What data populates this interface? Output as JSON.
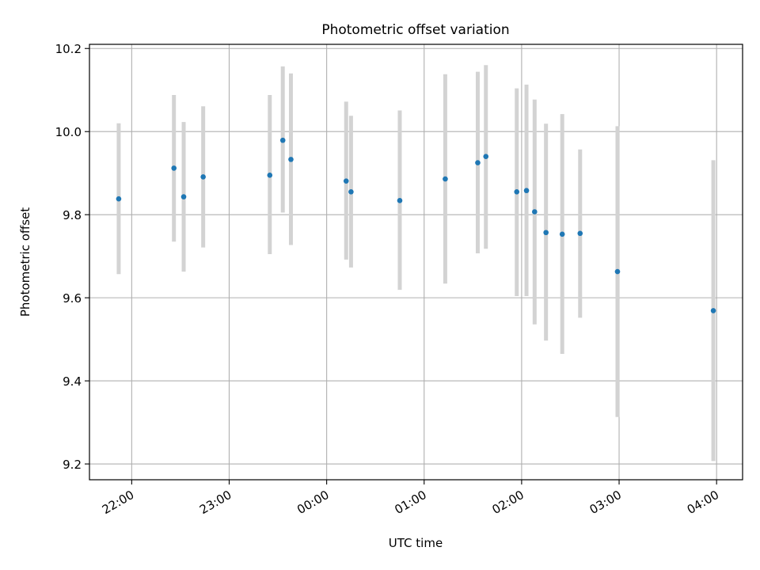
{
  "chart_data": {
    "type": "scatter",
    "title": "Photometric offset variation",
    "xlabel": "UTC time",
    "ylabel": "Photometric offset",
    "x_tick_labels": [
      "22:00",
      "23:00",
      "00:00",
      "01:00",
      "02:00",
      "03:00",
      "04:00"
    ],
    "y_tick_labels": [
      "9.2",
      "9.4",
      "9.6",
      "9.8",
      "10.0",
      "10.2"
    ],
    "y_ticks": [
      9.2,
      9.4,
      9.6,
      9.8,
      10.0,
      10.2
    ],
    "x_ticks": [
      "22:00",
      "23:00",
      "00:00",
      "01:00",
      "02:00",
      "03:00",
      "04:00"
    ],
    "xlim": [
      "21:34",
      "04:16"
    ],
    "ylim": [
      9.162,
      10.21
    ],
    "grid": true,
    "series": [
      {
        "color": "#1f77b4",
        "errorbar_color": "#d3d3d3",
        "points": [
          {
            "time": "21:52",
            "y": 9.838,
            "ylow": 9.657,
            "yhigh": 10.02
          },
          {
            "time": "22:26",
            "y": 9.912,
            "ylow": 9.735,
            "yhigh": 10.088
          },
          {
            "time": "22:32",
            "y": 9.843,
            "ylow": 9.663,
            "yhigh": 10.023
          },
          {
            "time": "22:44",
            "y": 9.891,
            "ylow": 9.721,
            "yhigh": 10.061
          },
          {
            "time": "23:25",
            "y": 9.895,
            "ylow": 9.705,
            "yhigh": 10.088
          },
          {
            "time": "23:33",
            "y": 9.979,
            "ylow": 9.805,
            "yhigh": 10.157
          },
          {
            "time": "23:38",
            "y": 9.933,
            "ylow": 9.727,
            "yhigh": 10.14
          },
          {
            "time": "00:12",
            "y": 9.881,
            "ylow": 9.692,
            "yhigh": 10.072
          },
          {
            "time": "00:15",
            "y": 9.855,
            "ylow": 9.673,
            "yhigh": 10.038
          },
          {
            "time": "00:45",
            "y": 9.834,
            "ylow": 9.619,
            "yhigh": 10.051
          },
          {
            "time": "01:13",
            "y": 9.886,
            "ylow": 9.634,
            "yhigh": 10.138
          },
          {
            "time": "01:33",
            "y": 9.925,
            "ylow": 9.707,
            "yhigh": 10.144
          },
          {
            "time": "01:38",
            "y": 9.94,
            "ylow": 9.718,
            "yhigh": 10.16
          },
          {
            "time": "01:57",
            "y": 9.855,
            "ylow": 9.604,
            "yhigh": 10.104
          },
          {
            "time": "02:03",
            "y": 9.858,
            "ylow": 9.604,
            "yhigh": 10.113
          },
          {
            "time": "02:08",
            "y": 9.807,
            "ylow": 9.536,
            "yhigh": 10.077
          },
          {
            "time": "02:15",
            "y": 9.757,
            "ylow": 9.497,
            "yhigh": 10.019
          },
          {
            "time": "02:25",
            "y": 9.753,
            "ylow": 9.465,
            "yhigh": 10.042
          },
          {
            "time": "02:36",
            "y": 9.755,
            "ylow": 9.552,
            "yhigh": 9.957
          },
          {
            "time": "02:59",
            "y": 9.663,
            "ylow": 9.313,
            "yhigh": 10.013
          },
          {
            "time": "03:58",
            "y": 9.569,
            "ylow": 9.207,
            "yhigh": 9.931
          }
        ]
      }
    ]
  }
}
